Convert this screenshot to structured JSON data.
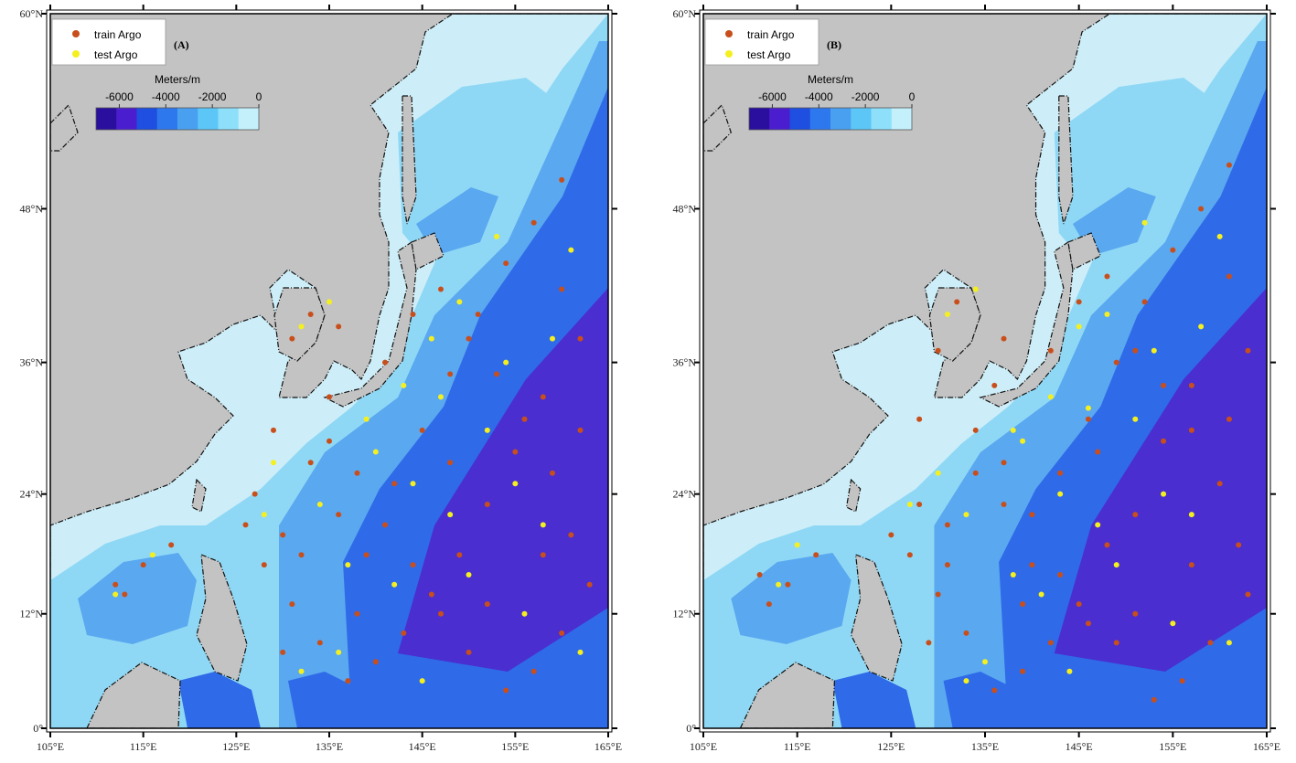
{
  "map": {
    "xlim": [
      105,
      165
    ],
    "ylim": [
      0,
      60
    ],
    "xticks": [
      {
        "value": 105,
        "label": "105°E"
      },
      {
        "value": 115,
        "label": "115°E"
      },
      {
        "value": 125,
        "label": "125°E"
      },
      {
        "value": 135,
        "label": "135°E"
      },
      {
        "value": 145,
        "label": "145°E"
      },
      {
        "value": 155,
        "label": "155°E"
      },
      {
        "value": 165,
        "label": "165°E"
      }
    ],
    "yticks": [
      {
        "value": 0,
        "label": "0°"
      },
      {
        "value": 12,
        "label": "12°N"
      },
      {
        "value": 24,
        "label": "24°N"
      },
      {
        "value": 36,
        "label": "36°N"
      },
      {
        "value": 48,
        "label": "48°N"
      },
      {
        "value": 60,
        "label": "60°N"
      }
    ]
  },
  "legend": [
    {
      "name": "train Argo",
      "color": "#c84f1c"
    },
    {
      "name": "test Argo",
      "color": "#f4f020"
    }
  ],
  "colorbar": {
    "title": "Meters/m",
    "lim": [
      -7000,
      0
    ],
    "ticks": [
      -6000,
      -4000,
      -2000,
      0
    ],
    "colors": [
      "#2a0f9e",
      "#4a1ecf",
      "#1f4fe0",
      "#2e78ee",
      "#4aa0f0",
      "#5cc6f6",
      "#8ee0fa",
      "#c4f0fc"
    ]
  },
  "panels": [
    {
      "label": "(A)",
      "train": [
        [
          127,
          24
        ],
        [
          130,
          20
        ],
        [
          133,
          27
        ],
        [
          136,
          22
        ],
        [
          139,
          18
        ],
        [
          142,
          25
        ],
        [
          145,
          30
        ],
        [
          148,
          35
        ],
        [
          151,
          40
        ],
        [
          154,
          44
        ],
        [
          157,
          47
        ],
        [
          160,
          50
        ],
        [
          162,
          38
        ],
        [
          158,
          33
        ],
        [
          155,
          28
        ],
        [
          152,
          23
        ],
        [
          149,
          18
        ],
        [
          146,
          14
        ],
        [
          143,
          10
        ],
        [
          140,
          7
        ],
        [
          137,
          5
        ],
        [
          134,
          9
        ],
        [
          131,
          13
        ],
        [
          128,
          17
        ],
        [
          126,
          21
        ],
        [
          129,
          30
        ],
        [
          135,
          33
        ],
        [
          141,
          36
        ],
        [
          144,
          40
        ],
        [
          147,
          42
        ],
        [
          150,
          38
        ],
        [
          153,
          35
        ],
        [
          156,
          31
        ],
        [
          159,
          26
        ],
        [
          161,
          20
        ],
        [
          163,
          15
        ],
        [
          160,
          10
        ],
        [
          157,
          6
        ],
        [
          154,
          4
        ],
        [
          150,
          8
        ],
        [
          147,
          12
        ],
        [
          144,
          17
        ],
        [
          141,
          21
        ],
        [
          138,
          26
        ],
        [
          135,
          29
        ],
        [
          132,
          18
        ],
        [
          130,
          8
        ],
        [
          138,
          12
        ],
        [
          148,
          27
        ],
        [
          160,
          42
        ],
        [
          131,
          38
        ],
        [
          133,
          40
        ],
        [
          136,
          39
        ],
        [
          112,
          15
        ],
        [
          115,
          17
        ],
        [
          118,
          19
        ],
        [
          113,
          14
        ],
        [
          162,
          30
        ],
        [
          158,
          18
        ],
        [
          152,
          13
        ]
      ],
      "test": [
        [
          129,
          27
        ],
        [
          134,
          23
        ],
        [
          139,
          31
        ],
        [
          143,
          34
        ],
        [
          146,
          38
        ],
        [
          149,
          41
        ],
        [
          152,
          30
        ],
        [
          155,
          25
        ],
        [
          158,
          21
        ],
        [
          161,
          45
        ],
        [
          148,
          22
        ],
        [
          142,
          15
        ],
        [
          136,
          8
        ],
        [
          132,
          6
        ],
        [
          145,
          5
        ],
        [
          150,
          16
        ],
        [
          156,
          12
        ],
        [
          162,
          8
        ],
        [
          140,
          28
        ],
        [
          153,
          46
        ],
        [
          132,
          39
        ],
        [
          135,
          41
        ],
        [
          112,
          14
        ],
        [
          116,
          18
        ],
        [
          128,
          22
        ],
        [
          147,
          33
        ],
        [
          154,
          36
        ],
        [
          159,
          38
        ],
        [
          137,
          17
        ],
        [
          144,
          25
        ]
      ]
    },
    {
      "label": "(B)",
      "train": [
        [
          128,
          23
        ],
        [
          131,
          21
        ],
        [
          134,
          26
        ],
        [
          137,
          23
        ],
        [
          140,
          17
        ],
        [
          143,
          26
        ],
        [
          146,
          31
        ],
        [
          149,
          36
        ],
        [
          152,
          41
        ],
        [
          155,
          45
        ],
        [
          158,
          48
        ],
        [
          161,
          51
        ],
        [
          163,
          37
        ],
        [
          157,
          34
        ],
        [
          154,
          29
        ],
        [
          151,
          22
        ],
        [
          148,
          19
        ],
        [
          145,
          13
        ],
        [
          142,
          9
        ],
        [
          139,
          6
        ],
        [
          136,
          4
        ],
        [
          133,
          10
        ],
        [
          130,
          14
        ],
        [
          127,
          18
        ],
        [
          125,
          20
        ],
        [
          128,
          31
        ],
        [
          136,
          34
        ],
        [
          142,
          37
        ],
        [
          145,
          41
        ],
        [
          148,
          43
        ],
        [
          151,
          37
        ],
        [
          154,
          34
        ],
        [
          157,
          30
        ],
        [
          160,
          25
        ],
        [
          162,
          19
        ],
        [
          163,
          14
        ],
        [
          159,
          9
        ],
        [
          156,
          5
        ],
        [
          153,
          3
        ],
        [
          149,
          9
        ],
        [
          146,
          11
        ],
        [
          143,
          16
        ],
        [
          140,
          22
        ],
        [
          137,
          27
        ],
        [
          134,
          30
        ],
        [
          131,
          17
        ],
        [
          129,
          9
        ],
        [
          139,
          13
        ],
        [
          147,
          28
        ],
        [
          161,
          43
        ],
        [
          130,
          37
        ],
        [
          132,
          41
        ],
        [
          137,
          38
        ],
        [
          111,
          16
        ],
        [
          114,
          15
        ],
        [
          117,
          18
        ],
        [
          112,
          13
        ],
        [
          161,
          31
        ],
        [
          157,
          17
        ],
        [
          151,
          12
        ]
      ],
      "test": [
        [
          130,
          26
        ],
        [
          133,
          22
        ],
        [
          138,
          30
        ],
        [
          142,
          33
        ],
        [
          145,
          39
        ],
        [
          148,
          40
        ],
        [
          151,
          31
        ],
        [
          154,
          24
        ],
        [
          157,
          22
        ],
        [
          160,
          46
        ],
        [
          147,
          21
        ],
        [
          141,
          14
        ],
        [
          135,
          7
        ],
        [
          133,
          5
        ],
        [
          144,
          6
        ],
        [
          149,
          17
        ],
        [
          155,
          11
        ],
        [
          161,
          9
        ],
        [
          139,
          29
        ],
        [
          152,
          47
        ],
        [
          131,
          40
        ],
        [
          134,
          42
        ],
        [
          113,
          15
        ],
        [
          115,
          19
        ],
        [
          127,
          23
        ],
        [
          146,
          32
        ],
        [
          153,
          37
        ],
        [
          158,
          39
        ],
        [
          138,
          16
        ],
        [
          143,
          24
        ]
      ]
    }
  ]
}
